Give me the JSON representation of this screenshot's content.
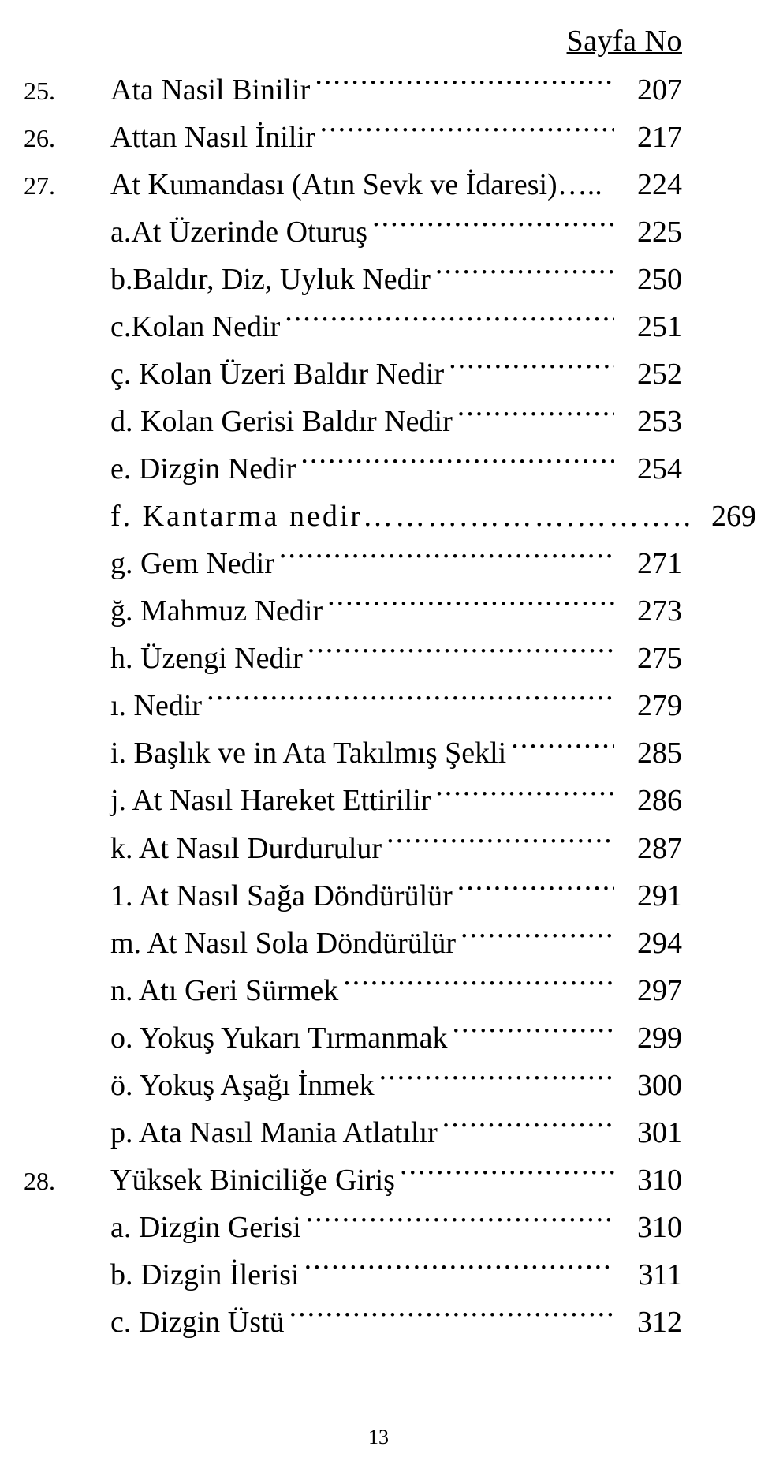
{
  "header": "Sayfa No",
  "footer": "13",
  "rows": [
    {
      "num": "25.",
      "label": "Ata Nasil Binilir",
      "page": "207",
      "indent": 0,
      "letterspace": false,
      "trail": "..........……."
    },
    {
      "num": "26.",
      "label": "Attan Nasıl İnilir",
      "page": "217",
      "indent": 0,
      "letterspace": false
    },
    {
      "num": "27.",
      "label": "At Kumandası (Atın Sevk ve İdaresi)…..",
      "page": "224",
      "indent": 0,
      "letterspace": false,
      "noleader": true
    },
    {
      "num": "",
      "label": "a.At Üzerinde Oturuş",
      "page": "225",
      "indent": 1,
      "letterspace": false
    },
    {
      "num": "",
      "label": "b.Baldır, Diz, Uyluk Nedir",
      "page": "250",
      "indent": 1,
      "letterspace": false
    },
    {
      "num": "",
      "label": "c.Kolan Nedir",
      "page": "251",
      "indent": 1,
      "letterspace": false
    },
    {
      "num": "",
      "label": "ç. Kolan Üzeri Baldır Nedir",
      "page": "252",
      "indent": 1,
      "letterspace": false
    },
    {
      "num": "",
      "label": "d. Kolan Gerisi Baldır Nedir",
      "page": "253",
      "indent": 1,
      "letterspace": false
    },
    {
      "num": "",
      "label": "e. Dizgin Nedir",
      "page": "254",
      "indent": 1,
      "letterspace": false
    },
    {
      "num": "",
      "label": "f. Kantarma nedir……….……….………..",
      "page": "269",
      "indent": 1,
      "letterspace": true,
      "noleader": true
    },
    {
      "num": "",
      "label": "g. Gem Nedir",
      "page": "271",
      "indent": 1,
      "letterspace": false
    },
    {
      "num": "",
      "label": "ğ. Mahmuz Nedir",
      "page": "273",
      "indent": 1,
      "letterspace": false
    },
    {
      "num": "",
      "label": "h. Üzengi Nedir",
      "page": "275",
      "indent": 1,
      "letterspace": false
    },
    {
      "num": "",
      "label": "ı. Nedir",
      "page": "279",
      "indent": 1,
      "letterspace": false
    },
    {
      "num": "",
      "label": "i. Başlık ve in Ata Takılmış Şekli",
      "page": "285",
      "indent": 1,
      "letterspace": false
    },
    {
      "num": "",
      "label": "j. At Nasıl Hareket Ettirilir",
      "page": "286",
      "indent": 1,
      "letterspace": false
    },
    {
      "num": "",
      "label": "k. At Nasıl Durdurulur",
      "page": "287",
      "indent": 1,
      "letterspace": false
    },
    {
      "num": "",
      "label": "1. At Nasıl Sağa Döndürülür",
      "page": "291",
      "indent": 1,
      "letterspace": false
    },
    {
      "num": "",
      "label": "m. At Nasıl Sola Döndürülür",
      "page": "294",
      "indent": 1,
      "letterspace": false
    },
    {
      "num": "",
      "label": "n. Atı Geri Sürmek",
      "page": "297",
      "indent": 1,
      "letterspace": false
    },
    {
      "num": "",
      "label": "o. Yokuş Yukarı Tırmanmak",
      "page": "299",
      "indent": 1,
      "letterspace": false
    },
    {
      "num": "",
      "label": "ö. Yokuş Aşağı İnmek",
      "page": "300",
      "indent": 1,
      "letterspace": false
    },
    {
      "num": "",
      "label": "p. Ata Nasıl Mania Atlatılır",
      "page": "301",
      "indent": 1,
      "letterspace": false
    },
    {
      "num": "28.",
      "label": "Yüksek Biniciliğe Giriş",
      "page": "310",
      "indent": 0,
      "letterspace": false
    },
    {
      "num": "",
      "label": "a. Dizgin Gerisi",
      "page": "310",
      "indent": 1,
      "letterspace": false
    },
    {
      "num": "",
      "label": "b. Dizgin İlerisi",
      "page": "311",
      "indent": 1,
      "letterspace": false
    },
    {
      "num": "",
      "label": "c. Dizgin Üstü",
      "page": "312",
      "indent": 1,
      "letterspace": false
    }
  ]
}
